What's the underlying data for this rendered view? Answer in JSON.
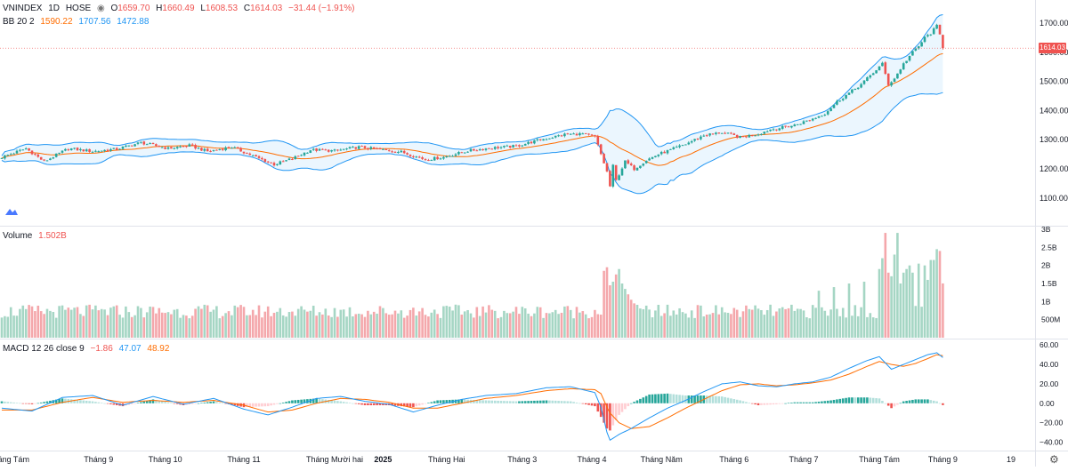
{
  "legend_main": {
    "symbol": "VNINDEX",
    "timeframe": "1D",
    "exchange": "HOSE",
    "o_label": "O",
    "o_value": "1659.70",
    "h_label": "H",
    "h_value": "1660.49",
    "l_label": "L",
    "l_value": "1608.53",
    "c_label": "C",
    "c_value": "1614.03",
    "change": "−31.44 (−1.91%)"
  },
  "legend_bb": {
    "name": "BB 20 2",
    "basis": "1590.22",
    "upper": "1707.56",
    "lower": "1472.88"
  },
  "legend_volume": {
    "name": "Volume",
    "value": "1.502B"
  },
  "legend_macd": {
    "name": "MACD 12 26 close 9",
    "hist": "−1.86",
    "macd": "47.07",
    "signal": "48.92"
  },
  "last_price_tag": "1614.03",
  "colors": {
    "up": "#26a69a",
    "down": "#ef5350",
    "vol_up": "#a5d6c4",
    "vol_down": "#f4a7ab",
    "bb_line": "#2196f3",
    "bb_basis": "#ff6d00",
    "bb_fill": "#e3f2fd",
    "macd_line": "#2196f3",
    "signal_line": "#ff6d00"
  },
  "chart_data": [
    {
      "type": "candlestick",
      "title": "VNINDEX 1D HOSE",
      "y_ticks": [
        "1100.00",
        "1200.00",
        "1300.00",
        "1400.00",
        "1500.00",
        "1600.00",
        "1700.00"
      ],
      "ylim": [
        1040,
        1725
      ],
      "x_ticks": [
        "Tháng Tám",
        "Tháng 9",
        "Tháng 10",
        "Tháng 11",
        "Tháng Mười hai",
        "2025",
        "Tháng Hai",
        "Tháng 3",
        "Tháng 4",
        "Tháng Năm",
        "Tháng 6",
        "Tháng 7",
        "Tháng Tám",
        "Tháng 9",
        "19"
      ],
      "anchors": [
        [
          0,
          1240
        ],
        [
          8,
          1270
        ],
        [
          14,
          1225
        ],
        [
          22,
          1270
        ],
        [
          30,
          1260
        ],
        [
          38,
          1268
        ],
        [
          46,
          1290
        ],
        [
          55,
          1270
        ],
        [
          62,
          1280
        ],
        [
          68,
          1260
        ],
        [
          76,
          1275
        ],
        [
          84,
          1240
        ],
        [
          90,
          1215
        ],
        [
          96,
          1235
        ],
        [
          102,
          1265
        ],
        [
          110,
          1262
        ],
        [
          118,
          1275
        ],
        [
          126,
          1265
        ],
        [
          132,
          1258
        ],
        [
          140,
          1232
        ],
        [
          146,
          1240
        ],
        [
          154,
          1262
        ],
        [
          162,
          1272
        ],
        [
          170,
          1278
        ],
        [
          178,
          1300
        ],
        [
          186,
          1318
        ],
        [
          192,
          1320
        ],
        [
          196,
          1310
        ],
        [
          198,
          1250
        ],
        [
          200,
          1190
        ],
        [
          201,
          1140
        ],
        [
          202,
          1210
        ],
        [
          203,
          1160
        ],
        [
          206,
          1225
        ],
        [
          209,
          1200
        ],
        [
          213,
          1230
        ],
        [
          217,
          1250
        ],
        [
          221,
          1265
        ],
        [
          226,
          1285
        ],
        [
          232,
          1315
        ],
        [
          238,
          1325
        ],
        [
          244,
          1308
        ],
        [
          250,
          1320
        ],
        [
          254,
          1335
        ],
        [
          258,
          1342
        ],
        [
          262,
          1350
        ],
        [
          268,
          1372
        ],
        [
          272,
          1390
        ],
        [
          276,
          1430
        ],
        [
          280,
          1460
        ],
        [
          284,
          1490
        ],
        [
          288,
          1530
        ],
        [
          291,
          1560
        ],
        [
          293,
          1490
        ],
        [
          295,
          1510
        ],
        [
          298,
          1560
        ],
        [
          301,
          1600
        ],
        [
          303,
          1620
        ],
        [
          305,
          1650
        ],
        [
          307,
          1665
        ],
        [
          309,
          1690
        ],
        [
          310,
          1660
        ],
        [
          311,
          1614
        ]
      ],
      "last": {
        "open": 1659.7,
        "high": 1660.49,
        "low": 1608.53,
        "close": 1614.03
      }
    },
    {
      "type": "line",
      "title": "BB 20 2",
      "series": [
        {
          "name": "basis",
          "value": 1590.22
        },
        {
          "name": "upper",
          "value": 1707.56
        },
        {
          "name": "lower",
          "value": 1472.88
        }
      ]
    },
    {
      "type": "bar",
      "title": "Volume",
      "y_ticks": [
        "500M",
        "1B",
        "1.5B",
        "2B",
        "2.5B",
        "3B"
      ],
      "ylim": [
        0,
        3000
      ],
      "base_level": 650,
      "spikes": [
        [
          199,
          1850
        ],
        [
          200,
          1950
        ],
        [
          201,
          1450
        ],
        [
          202,
          1550
        ],
        [
          203,
          1750
        ],
        [
          204,
          1900
        ],
        [
          205,
          1500
        ],
        [
          206,
          1350
        ],
        [
          207,
          1200
        ],
        [
          208,
          1050
        ],
        [
          209,
          950
        ],
        [
          270,
          1300
        ],
        [
          275,
          1400
        ],
        [
          280,
          1500
        ],
        [
          285,
          1550
        ],
        [
          290,
          1900
        ],
        [
          291,
          2200
        ],
        [
          292,
          2900
        ],
        [
          293,
          1800
        ],
        [
          294,
          1700
        ],
        [
          295,
          2300
        ],
        [
          296,
          2900
        ],
        [
          297,
          1500
        ],
        [
          298,
          1800
        ],
        [
          299,
          1900
        ],
        [
          300,
          2000
        ],
        [
          301,
          1800
        ],
        [
          303,
          2050
        ],
        [
          305,
          2000
        ],
        [
          306,
          1600
        ],
        [
          307,
          2150
        ],
        [
          308,
          2150
        ],
        [
          309,
          2450
        ],
        [
          310,
          2400
        ],
        [
          311,
          1502
        ]
      ],
      "last_value": 1502
    },
    {
      "type": "line",
      "title": "MACD 12 26 close 9",
      "y_ticks": [
        "−40.00",
        "−20.00",
        "0.00",
        "20.00",
        "40.00",
        "60.00"
      ],
      "ylim": [
        -45,
        62
      ],
      "macd_anchors": [
        [
          0,
          -5
        ],
        [
          10,
          -8
        ],
        [
          20,
          6
        ],
        [
          30,
          8
        ],
        [
          40,
          -2
        ],
        [
          50,
          7
        ],
        [
          60,
          -1
        ],
        [
          70,
          5
        ],
        [
          80,
          -6
        ],
        [
          88,
          -12
        ],
        [
          96,
          -4
        ],
        [
          104,
          5
        ],
        [
          112,
          7
        ],
        [
          120,
          2
        ],
        [
          128,
          -1
        ],
        [
          136,
          -9
        ],
        [
          144,
          -2
        ],
        [
          152,
          4
        ],
        [
          160,
          8
        ],
        [
          170,
          10
        ],
        [
          180,
          16
        ],
        [
          188,
          17
        ],
        [
          196,
          11
        ],
        [
          198,
          -4
        ],
        [
          200,
          -30
        ],
        [
          201,
          -38
        ],
        [
          204,
          -32
        ],
        [
          208,
          -26
        ],
        [
          214,
          -15
        ],
        [
          220,
          -5
        ],
        [
          226,
          3
        ],
        [
          232,
          12
        ],
        [
          238,
          20
        ],
        [
          244,
          22
        ],
        [
          250,
          18
        ],
        [
          256,
          17
        ],
        [
          262,
          20
        ],
        [
          268,
          22
        ],
        [
          274,
          27
        ],
        [
          280,
          36
        ],
        [
          286,
          44
        ],
        [
          290,
          48
        ],
        [
          294,
          35
        ],
        [
          298,
          40
        ],
        [
          302,
          45
        ],
        [
          306,
          50
        ],
        [
          309,
          52
        ],
        [
          311,
          47.07
        ]
      ],
      "signal_anchors": [
        [
          0,
          -7
        ],
        [
          10,
          -7
        ],
        [
          20,
          1
        ],
        [
          30,
          6
        ],
        [
          40,
          1
        ],
        [
          50,
          3
        ],
        [
          60,
          1
        ],
        [
          70,
          3
        ],
        [
          80,
          -2
        ],
        [
          88,
          -9
        ],
        [
          96,
          -7
        ],
        [
          104,
          0
        ],
        [
          112,
          5
        ],
        [
          120,
          4
        ],
        [
          128,
          1
        ],
        [
          136,
          -5
        ],
        [
          144,
          -5
        ],
        [
          152,
          0
        ],
        [
          160,
          5
        ],
        [
          170,
          8
        ],
        [
          180,
          13
        ],
        [
          188,
          15
        ],
        [
          196,
          14
        ],
        [
          198,
          10
        ],
        [
          200,
          -4
        ],
        [
          201,
          -10
        ],
        [
          204,
          -20
        ],
        [
          208,
          -26
        ],
        [
          214,
          -24
        ],
        [
          220,
          -15
        ],
        [
          226,
          -5
        ],
        [
          232,
          4
        ],
        [
          238,
          13
        ],
        [
          244,
          19
        ],
        [
          250,
          20
        ],
        [
          256,
          18
        ],
        [
          262,
          19
        ],
        [
          268,
          21
        ],
        [
          274,
          24
        ],
        [
          280,
          30
        ],
        [
          286,
          38
        ],
        [
          290,
          43
        ],
        [
          294,
          40
        ],
        [
          298,
          38
        ],
        [
          302,
          41
        ],
        [
          306,
          46
        ],
        [
          309,
          50
        ],
        [
          311,
          48.92
        ]
      ],
      "last": {
        "hist": -1.86,
        "macd": 47.07,
        "signal": 48.92
      }
    }
  ]
}
